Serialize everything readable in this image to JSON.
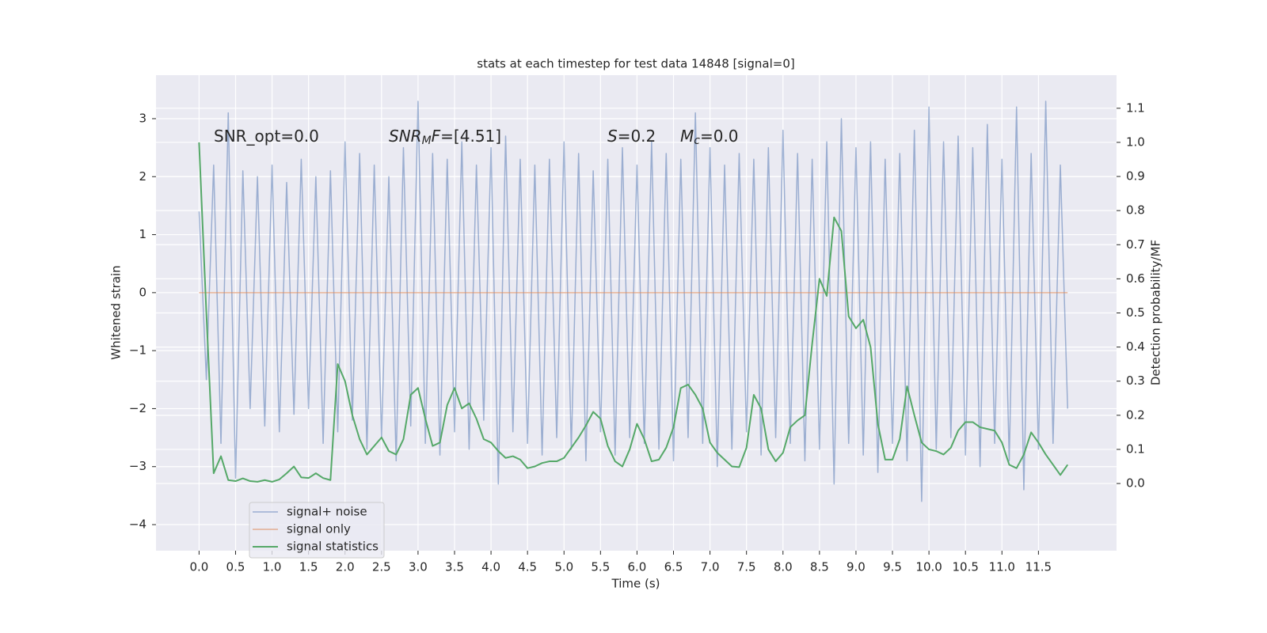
{
  "chart_data": {
    "type": "line",
    "title": "stats at each timestep for test data 14848 [signal=0]",
    "xlabel": "Time (s)",
    "ylabel": "Whitened strain",
    "y2label": "Detection probability/MF",
    "annotations": [
      [
        {
          "text": "SNR_opt=0.0"
        }
      ],
      [
        {
          "text": "SNR",
          "style": "italic"
        },
        {
          "text": "M",
          "style": "italic-sub"
        },
        {
          "text": "F",
          "style": "italic"
        },
        {
          "text": "=[4.51]"
        }
      ],
      [
        {
          "text": "S",
          "style": "italic"
        },
        {
          "text": "=0.2"
        }
      ],
      [
        {
          "text": "M",
          "style": "italic"
        },
        {
          "text": "c",
          "style": "italic-sub"
        },
        {
          "text": "=0.0"
        }
      ]
    ],
    "grid": true,
    "legend": "lower left",
    "xlim": [
      -0.59,
      12.57
    ],
    "ylim": [
      -4.45,
      3.75
    ],
    "y2lim": [
      -0.197,
      1.197
    ],
    "xticks": [
      {
        "value": 0,
        "label": "0.0"
      },
      {
        "value": 0.5,
        "label": "0.5"
      },
      {
        "value": 1,
        "label": "1.0"
      },
      {
        "value": 1.5,
        "label": "1.5"
      },
      {
        "value": 2,
        "label": "2.0"
      },
      {
        "value": 2.5,
        "label": "2.5"
      },
      {
        "value": 3,
        "label": "3.0"
      },
      {
        "value": 3.5,
        "label": "3.5"
      },
      {
        "value": 4,
        "label": "4.0"
      },
      {
        "value": 4.5,
        "label": "4.5"
      },
      {
        "value": 5,
        "label": "5.0"
      },
      {
        "value": 5.5,
        "label": "5.5"
      },
      {
        "value": 6,
        "label": "6.0"
      },
      {
        "value": 6.5,
        "label": "6.5"
      },
      {
        "value": 7,
        "label": "7.0"
      },
      {
        "value": 7.5,
        "label": "7.5"
      },
      {
        "value": 8,
        "label": "8.0"
      },
      {
        "value": 8.5,
        "label": "8.5"
      },
      {
        "value": 9,
        "label": "9.0"
      },
      {
        "value": 9.5,
        "label": "9.5"
      },
      {
        "value": 10,
        "label": "10.0"
      },
      {
        "value": 10.5,
        "label": "10.5"
      },
      {
        "value": 11,
        "label": "11.0"
      },
      {
        "value": 11.5,
        "label": "11.5"
      }
    ],
    "yticks": [
      {
        "value": -4,
        "label": "−4"
      },
      {
        "value": -3,
        "label": "−3"
      },
      {
        "value": -2,
        "label": "−2"
      },
      {
        "value": -1,
        "label": "−1"
      },
      0,
      1,
      2,
      3
    ],
    "y2ticks": [
      {
        "value": 0,
        "label": "0.0"
      },
      0.1,
      0.2,
      0.3,
      0.4,
      0.5,
      0.6,
      0.7,
      0.8,
      0.9,
      {
        "value": 1,
        "label": "1.0"
      },
      1.1
    ],
    "x": [
      0,
      0.1,
      0.2,
      0.3,
      0.4,
      0.5,
      0.6,
      0.7,
      0.8,
      0.9,
      1,
      1.1,
      1.2,
      1.3,
      1.4,
      1.5,
      1.6,
      1.7,
      1.8,
      1.9,
      2,
      2.1,
      2.2,
      2.3,
      2.4,
      2.5,
      2.6,
      2.7,
      2.8,
      2.9,
      3,
      3.1,
      3.2,
      3.3,
      3.4,
      3.5,
      3.6,
      3.7,
      3.8,
      3.9,
      4,
      4.1,
      4.2,
      4.3,
      4.4,
      4.5,
      4.6,
      4.7,
      4.8,
      4.9,
      5,
      5.1,
      5.2,
      5.3,
      5.4,
      5.5,
      5.6,
      5.7,
      5.8,
      5.9,
      6,
      6.1,
      6.2,
      6.3,
      6.4,
      6.5,
      6.6,
      6.7,
      6.8,
      6.9,
      7,
      7.1,
      7.2,
      7.3,
      7.4,
      7.5,
      7.6,
      7.7,
      7.8,
      7.9,
      8,
      8.1,
      8.2,
      8.3,
      8.4,
      8.5,
      8.6,
      8.7,
      8.8,
      8.9,
      9,
      9.1,
      9.2,
      9.3,
      9.4,
      9.5,
      9.6,
      9.7,
      9.8,
      9.9,
      10,
      10.1,
      10.2,
      10.3,
      10.4,
      10.5,
      10.6,
      10.7,
      10.8,
      10.9,
      11,
      11.1,
      11.2,
      11.3,
      11.4,
      11.5,
      11.6,
      11.7,
      11.8,
      11.9
    ],
    "series": [
      {
        "name": "signal+ noise",
        "color": "#4c72b0",
        "values": [
          1.4,
          -1.5,
          2.2,
          -2.6,
          3.1,
          -3.2,
          2.1,
          -2.0,
          2.0,
          -2.3,
          2.2,
          -2.4,
          1.9,
          -2.1,
          2.3,
          -2.0,
          2.0,
          -2.6,
          2.1,
          -2.4,
          2.6,
          -2.2,
          2.4,
          -2.7,
          2.2,
          -2.5,
          2.0,
          -2.9,
          2.5,
          -2.3,
          3.3,
          -2.6,
          2.4,
          -2.8,
          2.3,
          -2.4,
          2.6,
          -2.7,
          2.2,
          -2.2,
          2.5,
          -3.3,
          2.7,
          -2.4,
          2.3,
          -2.6,
          2.2,
          -2.8,
          2.3,
          -2.5,
          2.6,
          -2.7,
          2.4,
          -2.9,
          2.1,
          -2.4,
          2.3,
          -2.8,
          2.5,
          -2.5,
          2.2,
          -2.6,
          2.6,
          -2.7,
          2.4,
          -2.9,
          2.3,
          -2.5,
          3.1,
          -2.6,
          2.5,
          -3.0,
          2.2,
          -2.7,
          2.4,
          -2.4,
          2.3,
          -2.8,
          2.5,
          -2.5,
          2.8,
          -2.6,
          2.4,
          -2.9,
          2.3,
          -2.7,
          2.6,
          -3.3,
          3.0,
          -2.6,
          2.5,
          -2.8,
          2.6,
          -3.1,
          2.3,
          -2.6,
          2.4,
          -2.9,
          2.8,
          -3.6,
          3.2,
          -2.7,
          2.6,
          -2.5,
          2.7,
          -2.8,
          2.5,
          -3.0,
          2.9,
          -2.6,
          2.3,
          -2.9,
          3.2,
          -3.4,
          2.4,
          -2.7,
          3.3,
          -2.6,
          2.2,
          -2.0
        ]
      },
      {
        "name": "signal only",
        "color": "#dd8452",
        "values": [
          0,
          0,
          0,
          0,
          0,
          0,
          0,
          0,
          0,
          0,
          0,
          0,
          0,
          0,
          0,
          0,
          0,
          0,
          0,
          0,
          0,
          0,
          0,
          0,
          0,
          0,
          0,
          0,
          0,
          0,
          0,
          0,
          0,
          0,
          0,
          0,
          0,
          0,
          0,
          0,
          0,
          0,
          0,
          0,
          0,
          0,
          0,
          0,
          0,
          0,
          0,
          0,
          0,
          0,
          0,
          0,
          0,
          0,
          0,
          0,
          0,
          0,
          0,
          0,
          0,
          0,
          0,
          0,
          0,
          0,
          0,
          0,
          0,
          0,
          0,
          0,
          0,
          0,
          0,
          0,
          0,
          0,
          0,
          0,
          0,
          0,
          0,
          0,
          0,
          0,
          0,
          0,
          0,
          0,
          0,
          0,
          0,
          0,
          0,
          0,
          0,
          0,
          0,
          0,
          0,
          0,
          0,
          0,
          0,
          0,
          0,
          0,
          0,
          0,
          0,
          0,
          0,
          0,
          0,
          0
        ]
      },
      {
        "name": "signal statistics",
        "color": "#55a868",
        "axis": "y2",
        "values": [
          1.0,
          0.5,
          0.03,
          0.08,
          0.01,
          0.007,
          0.015,
          0.007,
          0.005,
          0.01,
          0.005,
          0.012,
          0.03,
          0.05,
          0.018,
          0.016,
          0.03,
          0.016,
          0.01,
          0.35,
          0.3,
          0.2,
          0.13,
          0.085,
          0.11,
          0.135,
          0.095,
          0.085,
          0.13,
          0.26,
          0.28,
          0.19,
          0.11,
          0.12,
          0.23,
          0.28,
          0.22,
          0.235,
          0.19,
          0.13,
          0.12,
          0.095,
          0.075,
          0.08,
          0.07,
          0.045,
          0.05,
          0.06,
          0.065,
          0.065,
          0.075,
          0.105,
          0.135,
          0.17,
          0.21,
          0.19,
          0.11,
          0.065,
          0.05,
          0.1,
          0.175,
          0.13,
          0.065,
          0.07,
          0.105,
          0.165,
          0.28,
          0.29,
          0.26,
          0.22,
          0.12,
          0.09,
          0.07,
          0.05,
          0.048,
          0.105,
          0.26,
          0.22,
          0.1,
          0.065,
          0.09,
          0.165,
          0.185,
          0.2,
          0.41,
          0.6,
          0.55,
          0.78,
          0.74,
          0.49,
          0.455,
          0.48,
          0.4,
          0.175,
          0.07,
          0.07,
          0.13,
          0.285,
          0.2,
          0.12,
          0.1,
          0.095,
          0.085,
          0.105,
          0.155,
          0.18,
          0.18,
          0.165,
          0.16,
          0.155,
          0.12,
          0.055,
          0.045,
          0.085,
          0.15,
          0.12,
          0.085,
          0.055,
          0.025,
          0.055
        ]
      }
    ]
  }
}
